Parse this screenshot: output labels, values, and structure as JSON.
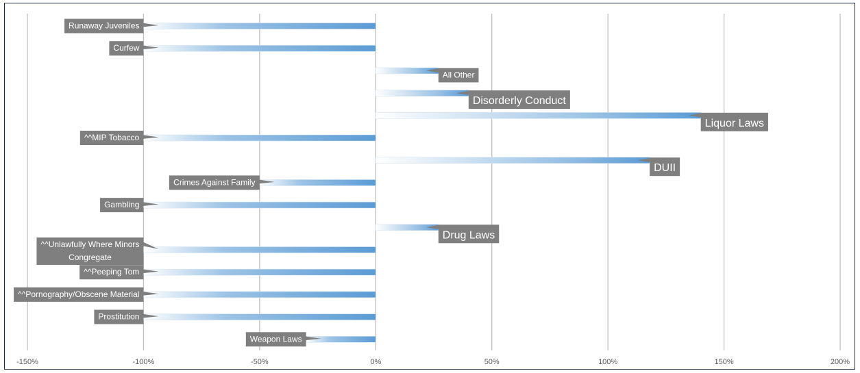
{
  "chart_data": {
    "type": "bar",
    "orientation": "horizontal",
    "categories": [
      "Runaway Juveniles",
      "Curfew",
      "All Other",
      "Disorderly Conduct",
      "Liquor Laws",
      "^^MIP Tobacco",
      "DUII",
      "Crimes Against Family",
      "Gambling",
      "Drug Laws",
      "^^Unlawfully Where Minors Congregate",
      "^^Peeping Tom",
      "^^Pornography/Obscene Material",
      "Prostitution",
      "Weapon Laws"
    ],
    "values": [
      -100,
      -100,
      27,
      40,
      140,
      -100,
      118,
      -50,
      -100,
      27,
      -100,
      -100,
      -100,
      -100,
      -30
    ],
    "xlim": [
      -150,
      200
    ],
    "xticks": [
      -150,
      -100,
      -50,
      0,
      50,
      100,
      150,
      200
    ],
    "tick_labels": [
      "-150%",
      "-100%",
      "-50%",
      "0%",
      "50%",
      "100%",
      "150%",
      "200%"
    ],
    "grid": "vertical",
    "title": "",
    "xlabel": "",
    "ylabel": "",
    "colors": {
      "bar": "#5b9bd5",
      "label_box": "#7f7f7f",
      "grid": "#bfbfbf",
      "border": "#1f2a44"
    }
  }
}
